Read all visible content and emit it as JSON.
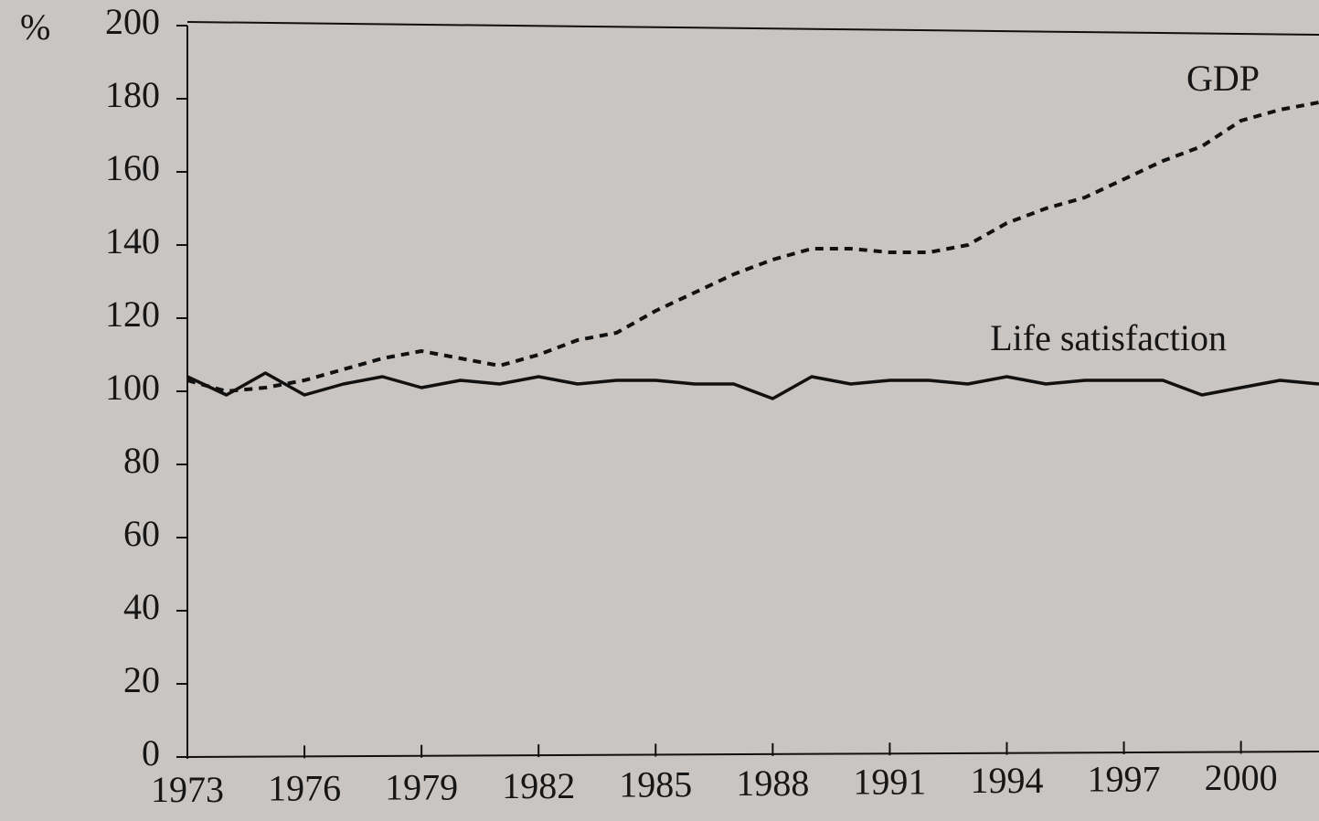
{
  "chart_data": {
    "type": "line",
    "y_label": "%",
    "x": [
      1973,
      1974,
      1975,
      1976,
      1977,
      1978,
      1979,
      1980,
      1981,
      1982,
      1983,
      1984,
      1985,
      1986,
      1987,
      1988,
      1989,
      1990,
      1991,
      1992,
      1993,
      1994,
      1995,
      1996,
      1997,
      1998,
      1999,
      2000,
      2001,
      2002
    ],
    "series": [
      {
        "name": "GDP",
        "color": "#111111",
        "dash": true,
        "values": [
          103,
          100,
          101,
          103,
          106,
          109,
          111,
          109,
          107,
          110,
          114,
          116,
          122,
          127,
          132,
          136,
          139,
          139,
          138,
          138,
          140,
          146,
          150,
          153,
          158,
          163,
          167,
          174,
          177,
          179
        ]
      },
      {
        "name": "Life satisfaction",
        "color": "#111111",
        "dash": false,
        "values": [
          104,
          99,
          105,
          99,
          102,
          104,
          101,
          103,
          102,
          104,
          102,
          103,
          103,
          102,
          102,
          98,
          104,
          102,
          103,
          103,
          102,
          104,
          102,
          103,
          103,
          103,
          99,
          101,
          103,
          102
        ]
      }
    ],
    "xlim": [
      1973,
      2002
    ],
    "xticks": [
      1973,
      1976,
      1979,
      1982,
      1985,
      1988,
      1991,
      1994,
      1997,
      2000
    ],
    "ylim": [
      0,
      200
    ],
    "yticks": [
      0,
      20,
      40,
      60,
      80,
      100,
      120,
      140,
      160,
      180,
      200
    ],
    "grid": false
  }
}
